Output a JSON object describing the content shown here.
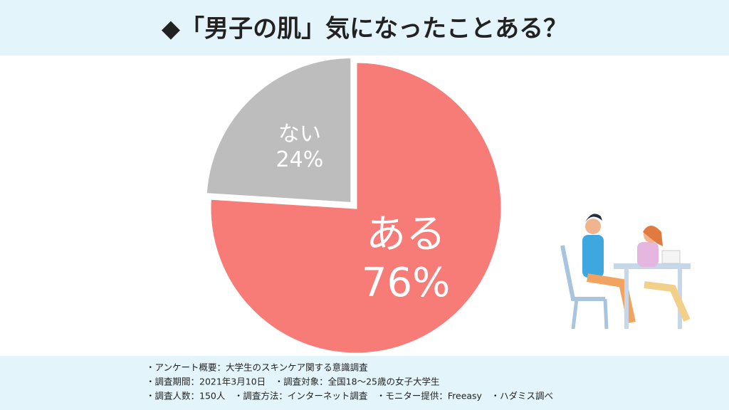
{
  "chart_data": {
    "type": "pie",
    "title": "◆「男子の肌」気になったことある？",
    "categories": [
      "ある",
      "ない"
    ],
    "values": [
      76,
      24
    ],
    "value_labels": [
      "76%",
      "24%"
    ],
    "colors": [
      "#f77c78",
      "#bdbdbd"
    ],
    "notes": [
      "・アンケート概要：大学生のスキンケア関する意識調査",
      "・調査期間：2021年3月10日　・調査対象：全国18〜25歳の女子大学生",
      "・調査人数：150人　・調査方法：インターネット調査　・モニター提供：Freeasy　・ハダミス調べ"
    ]
  }
}
